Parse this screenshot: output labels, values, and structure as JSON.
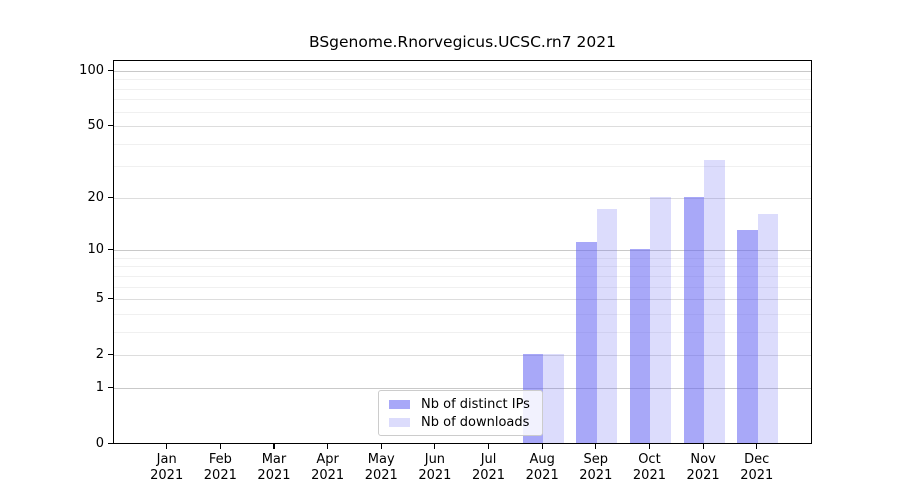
{
  "figure": {
    "background": "#ffffff"
  },
  "chart_data": {
    "type": "bar",
    "title": "BSgenome.Rnorvegicus.UCSC.rn7 2021",
    "categories": [
      "Jan 2021",
      "Feb 2021",
      "Mar 2021",
      "Apr 2021",
      "May 2021",
      "Jun 2021",
      "Jul 2021",
      "Aug 2021",
      "Sep 2021",
      "Oct 2021",
      "Nov 2021",
      "Dec 2021"
    ],
    "series": [
      {
        "name": "Nb of distinct IPs",
        "base_color": "#6060f2",
        "alpha": 0.55,
        "rendered_color": "#a9a9f6",
        "values": [
          0,
          0,
          0,
          0,
          0,
          0,
          0,
          2,
          11,
          10,
          20,
          13
        ]
      },
      {
        "name": "Nb of downloads",
        "base_color": "#6060f2",
        "alpha": 0.22,
        "rendered_color": "#dcdcf9",
        "values": [
          0,
          0,
          0,
          0,
          0,
          0,
          0,
          2,
          17,
          20,
          32,
          16
        ]
      }
    ],
    "xlabel": "",
    "ylabel": "",
    "yscale": "log1p",
    "ylim": [
      0,
      114
    ],
    "yticks": [
      0,
      1,
      2,
      5,
      10,
      20,
      50,
      100
    ],
    "ytick_labels": [
      "0",
      "1",
      "2",
      "5",
      "10",
      "20",
      "50",
      "100"
    ],
    "grid": {
      "on": true,
      "major_values": [
        1,
        10,
        100
      ],
      "mid_values": [
        2,
        5,
        20,
        50
      ],
      "minor_values": [
        3,
        4,
        6,
        7,
        8,
        9,
        30,
        40,
        60,
        70,
        80,
        90
      ],
      "major_color": "#c9c9c9",
      "mid_color": "#dddddd",
      "minor_color": "#f0f0f0"
    },
    "legend": {
      "position": "lower center",
      "entries": [
        "Nb of distinct IPs",
        "Nb of downloads"
      ]
    },
    "axis_color": "#000000"
  }
}
